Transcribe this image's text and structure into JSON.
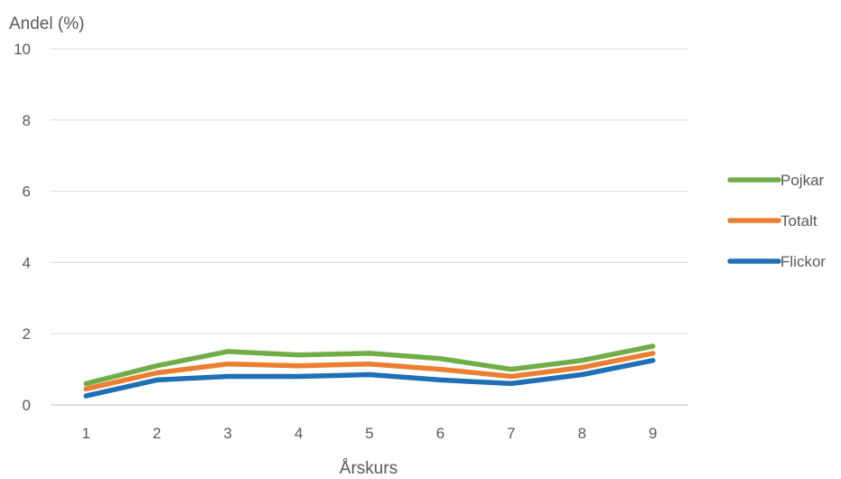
{
  "chart_data": {
    "type": "line",
    "title": "",
    "xlabel": "Årskurs",
    "ylabel": "Andel (%)",
    "x": [
      "1",
      "2",
      "3",
      "4",
      "5",
      "6",
      "7",
      "8",
      "9"
    ],
    "yticks": [
      "0",
      "2",
      "4",
      "6",
      "8",
      "10"
    ],
    "ylim": [
      0,
      10
    ],
    "grid": "horizontal",
    "legend_position": "right",
    "series": [
      {
        "name": "Pojkar",
        "color": "#70ad47",
        "values": [
          0.6,
          1.1,
          1.5,
          1.4,
          1.45,
          1.3,
          1.0,
          1.25,
          1.65
        ]
      },
      {
        "name": "Totalt",
        "color": "#ed7d31",
        "values": [
          0.45,
          0.9,
          1.15,
          1.1,
          1.15,
          1.0,
          0.8,
          1.05,
          1.45
        ]
      },
      {
        "name": "Flickor",
        "color": "#1f6fb4",
        "values": [
          0.25,
          0.7,
          0.8,
          0.8,
          0.85,
          0.7,
          0.6,
          0.85,
          1.25
        ]
      }
    ]
  }
}
